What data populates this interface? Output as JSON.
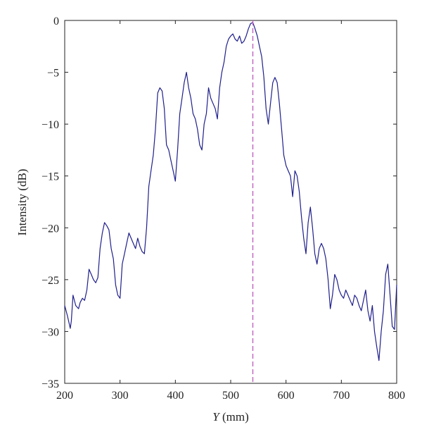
{
  "chart_data": {
    "type": "line",
    "title": "",
    "xlabel_var": "Y",
    "xlabel_unit": " (mm)",
    "ylabel": "Intensity (dB)",
    "xlim": [
      200,
      800
    ],
    "ylim": [
      -35,
      0
    ],
    "xticks": [
      200,
      300,
      400,
      500,
      600,
      700,
      800
    ],
    "yticks": [
      0,
      -5,
      -10,
      -15,
      -20,
      -25,
      -30,
      -35
    ],
    "grid": false,
    "legend": "none",
    "series": [
      {
        "color": "#1f1f8c",
        "x": [
          200,
          205,
          210,
          212,
          215,
          220,
          225,
          228,
          232,
          236,
          240,
          244,
          248,
          252,
          256,
          260,
          264,
          268,
          272,
          276,
          280,
          284,
          288,
          292,
          296,
          300,
          304,
          308,
          312,
          316,
          320,
          324,
          328,
          332,
          336,
          340,
          344,
          348,
          352,
          356,
          360,
          364,
          368,
          372,
          376,
          380,
          384,
          388,
          392,
          396,
          400,
          404,
          408,
          412,
          416,
          420,
          424,
          428,
          432,
          436,
          440,
          444,
          448,
          452,
          456,
          460,
          464,
          468,
          472,
          476,
          480,
          484,
          488,
          492,
          496,
          500,
          504,
          508,
          512,
          516,
          520,
          524,
          528,
          532,
          536,
          540,
          544,
          548,
          552,
          556,
          560,
          564,
          568,
          572,
          576,
          580,
          584,
          588,
          592,
          596,
          600,
          604,
          608,
          612,
          616,
          620,
          624,
          628,
          632,
          636,
          640,
          644,
          648,
          652,
          656,
          660,
          664,
          668,
          672,
          676,
          680,
          684,
          688,
          692,
          696,
          700,
          704,
          708,
          712,
          716,
          720,
          724,
          728,
          732,
          736,
          740,
          744,
          748,
          752,
          756,
          760,
          764,
          768,
          772,
          776,
          780,
          784,
          788,
          792,
          796,
          800
        ],
        "y": [
          -27.5,
          -28.5,
          -29.7,
          -29.0,
          -26.5,
          -27.5,
          -27.8,
          -27.2,
          -26.8,
          -27.0,
          -26.0,
          -24.0,
          -24.5,
          -25.0,
          -25.3,
          -24.8,
          -22.0,
          -20.5,
          -19.5,
          -19.8,
          -20.2,
          -22.0,
          -23.0,
          -25.5,
          -26.5,
          -26.8,
          -23.5,
          -22.5,
          -21.5,
          -20.5,
          -21.0,
          -21.5,
          -22.0,
          -21.0,
          -21.8,
          -22.3,
          -22.5,
          -20.0,
          -16.0,
          -14.5,
          -13.0,
          -10.5,
          -7.0,
          -6.5,
          -6.8,
          -8.5,
          -12.0,
          -12.5,
          -13.5,
          -14.5,
          -15.5,
          -12.5,
          -9.0,
          -7.5,
          -6.0,
          -5.0,
          -6.5,
          -7.5,
          -9.0,
          -9.5,
          -10.5,
          -12.0,
          -12.5,
          -10.0,
          -9.0,
          -6.5,
          -7.5,
          -8.0,
          -8.5,
          -9.5,
          -6.5,
          -5.0,
          -4.0,
          -2.5,
          -1.8,
          -1.5,
          -1.3,
          -1.8,
          -2.0,
          -1.5,
          -2.2,
          -2.0,
          -1.5,
          -0.8,
          -0.3,
          -0.2,
          -0.8,
          -1.5,
          -2.5,
          -3.5,
          -5.5,
          -8.5,
          -10.0,
          -8.0,
          -6.0,
          -5.5,
          -6.0,
          -8.0,
          -10.5,
          -13.0,
          -14.0,
          -14.5,
          -15.0,
          -17.0,
          -14.5,
          -15.0,
          -16.5,
          -19.0,
          -21.0,
          -22.5,
          -19.5,
          -18.0,
          -20.0,
          -22.5,
          -23.5,
          -22.0,
          -21.5,
          -22.0,
          -23.0,
          -25.0,
          -27.8,
          -26.5,
          -24.5,
          -25.0,
          -26.0,
          -26.5,
          -26.8,
          -26.0,
          -26.5,
          -27.0,
          -27.5,
          -26.5,
          -26.8,
          -27.5,
          -28.0,
          -27.0,
          -26.0,
          -28.0,
          -29.0,
          -27.5,
          -30.0,
          -31.5,
          -32.8,
          -30.0,
          -28.0,
          -24.5,
          -23.5,
          -26.5,
          -29.5,
          -29.8,
          -25.5
        ]
      }
    ],
    "marker_line": {
      "x": 540,
      "color": "#c060c0",
      "style": "dashed"
    }
  }
}
